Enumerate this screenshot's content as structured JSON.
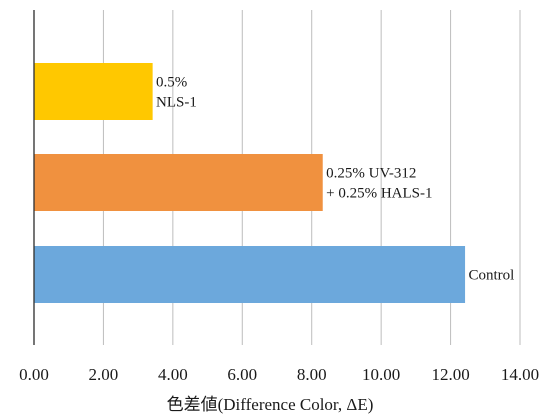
{
  "chart_data": {
    "type": "bar",
    "orientation": "horizontal",
    "title": "",
    "xlabel": "色差値(Difference Color, ΔE)",
    "ylabel": "",
    "xlim": [
      0,
      14
    ],
    "x_ticks": [
      "0.00",
      "2.00",
      "4.00",
      "6.00",
      "8.00",
      "10.00",
      "12.00",
      "14.00"
    ],
    "grid": "vertical",
    "legend": "none",
    "bars": [
      {
        "value": 3.4,
        "label_lines": [
          "0.5%",
          "NLS-1"
        ],
        "color": "#FFC800"
      },
      {
        "value": 8.3,
        "label_lines": [
          "0.25% UV-312",
          "+ 0.25% HALS-1"
        ],
        "color": "#F0913F"
      },
      {
        "value": 12.4,
        "label_lines": [
          "Control"
        ],
        "color": "#6CA8DC"
      }
    ]
  }
}
